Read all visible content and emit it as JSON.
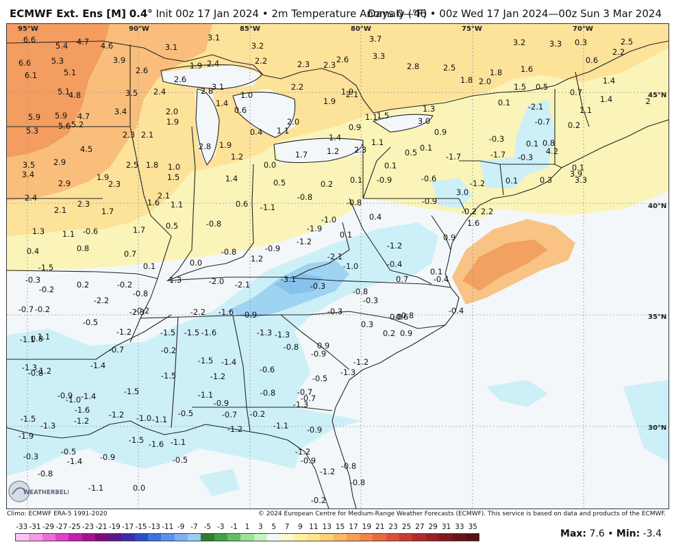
{
  "header": {
    "model": "ECMWF Ext. Ens [M]",
    "resolution": "0.4°",
    "init": "Init 00z 17 Jan 2024",
    "separator": "•",
    "variable": "2m Temperature Anomaly (°F)",
    "range": "Days 0—46",
    "period": "00z Wed 17 Jan 2024—00z Sun 3 Mar 2024"
  },
  "lon_labels": [
    "95°W",
    "90°W",
    "85°W",
    "80°W",
    "75°W",
    "70°W"
  ],
  "lat_labels": [
    "45°N",
    "40°N",
    "35°N",
    "30°N"
  ],
  "anomaly_values": [
    "6.6",
    "5.4",
    "4.7",
    "4.6",
    "3.1",
    "3.2",
    "3.7",
    "3.2",
    "3.3",
    "0.3",
    "2.5",
    "2.2",
    "6.6",
    "5.3",
    "3.9",
    "3.1",
    "1.9",
    "2.4",
    "2.2",
    "2.3",
    "2.6",
    "3.3",
    "2.8",
    "2.5",
    "1.8",
    "1.6",
    "0.6",
    "6.1",
    "5.1",
    "2.6",
    "2.6",
    "2.8",
    "2.3",
    "1.9",
    "1.8",
    "2.0",
    "1.5",
    "0.5",
    "1.4",
    "5.1",
    "4.8",
    "3.5",
    "2.4",
    "3.1",
    "1.0",
    "2.2",
    "2.1",
    "0.7",
    "1.4",
    "2",
    "1.4",
    "0.6",
    "1.9",
    "1.1",
    "1.5",
    "1.3",
    "0.1",
    "-2.1",
    "1.1",
    "5.9",
    "5.9",
    "4.7",
    "3.4",
    "2.0",
    "1.9",
    "2.0",
    "1.1",
    "0.9",
    "3.0",
    "0.9",
    "-0.7",
    "0.2",
    "5.3",
    "5.6",
    "5.2",
    "2.3",
    "2.1",
    "0.4",
    "1.4",
    "1.1",
    "-0.3",
    "0.1",
    "0.8",
    "4.5",
    "2.8",
    "1.9",
    "1.2",
    "1.2",
    "2.3",
    "1.7",
    "0.5",
    "0.1",
    "-1.7",
    "-1.7",
    "-0.3",
    "4.2",
    "2.9",
    "2.5",
    "1.8",
    "1.0",
    "0.0",
    "0.1",
    "0.1",
    "3.9",
    "3.5",
    "3.4",
    "1.9",
    "1.5",
    "1.4",
    "0.5",
    "0.2",
    "0.1",
    "-0.9",
    "-0.6",
    "-1.2",
    "0.1",
    "0.3",
    "3.3",
    "2.9",
    "2.3",
    "1.6",
    "0.6",
    "-0.8",
    "-0.8",
    "-0.9",
    "3.0",
    "2.4",
    "2.3",
    "2.1",
    "1.1",
    "-1.1",
    "-0.2",
    "2.2",
    "2.1",
    "1.7",
    "1.7",
    "0.5",
    "-0.8",
    "-1.0",
    "0.4",
    "1.6",
    "1.3",
    "1.1",
    "-0.6",
    "-1.9",
    "0.1",
    "0.9",
    "0.8",
    "0.7",
    "0.1",
    "0.0",
    "-0.8",
    "-0.9",
    "-1.2",
    "-1.2",
    "1.2",
    "0.4",
    "-1.5",
    "-2.1",
    "-1.0",
    "-0.4",
    "0.1",
    "-0.3",
    "0.2",
    "-0.2",
    "-1.3",
    "-2.0",
    "-2.1",
    "-3.1",
    "-0.3",
    "0.7",
    "-0.4",
    "-0.2",
    "-0.8",
    "-0.8",
    "-0.3",
    "-0.6",
    "-0.7",
    "-0.2",
    "-2.2",
    "-1.6",
    "-2.2",
    "-2.3",
    "-0.9",
    "-0.3",
    "0.0",
    "-0.8",
    "-0.4",
    "-0.5",
    "-0.2",
    "0.3",
    "0.2",
    "0.9",
    "0.8",
    "1.1",
    "-1.2",
    "-1.5",
    "-1.5",
    "-1.6",
    "-1.3",
    "-1.3",
    "-0.8",
    "0.9",
    "-1.1",
    "-0.7",
    "-0.2",
    "-0.9",
    "-1.2",
    "-1.3",
    "-0.8",
    "-1.4",
    "-1.5",
    "-1.5",
    "-1.4",
    "-1.2",
    "-0.6",
    "-0.5",
    "-1.3",
    "-1.2",
    "-0.9",
    "-1.4",
    "-1.5",
    "-1.1",
    "-0.9",
    "-0.8",
    "-0.7",
    "-0.7",
    "-1.3",
    "-1.0",
    "-1.6",
    "-1.5",
    "-1.3",
    "-1.2",
    "-1.2",
    "-1.0",
    "-1.1",
    "-0.5",
    "-0.7",
    "-1.2",
    "-0.2",
    "-1.1",
    "-0.9",
    "-1.9",
    "-1.5",
    "-1.6",
    "-1.1",
    "-0.5",
    "-1.4",
    "-0.9",
    "-0.5",
    "-1.2",
    "-0.9",
    "-1.2",
    "-0.8",
    "-0.3",
    "-0.8",
    "-0.8",
    "-1.1",
    "0.0",
    "-0.2"
  ],
  "climo_note": "Climo: ECMWF ERA-5 1991-2020",
  "copyright": "© 2024 European Centre for Medium-Range Weather Forecasts (ECMWF). This service is based on data and products of the ECMWF.",
  "scale_labels": [
    "-33",
    "-31",
    "-29",
    "-27",
    "-25",
    "-23",
    "-21",
    "-19",
    "-17",
    "-15",
    "-13",
    "-11",
    "-9",
    "-7",
    "-5",
    "-3",
    "-1",
    "1",
    "3",
    "5",
    "7",
    "9",
    "11",
    "13",
    "15",
    "17",
    "19",
    "21",
    "23",
    "25",
    "27",
    "29",
    "31",
    "33",
    "35"
  ],
  "scale_colors": [
    "#f7c6f0",
    "#f29ae6",
    "#e96fd8",
    "#db44c5",
    "#c31fae",
    "#a5108f",
    "#7d0b7a",
    "#5a1a8a",
    "#3d2ca8",
    "#2c4ec4",
    "#3f72d8",
    "#5c93e6",
    "#7db2ef",
    "#9acdf4",
    "#2e7d32",
    "#43a047",
    "#66bb6a",
    "#9be29a",
    "#c8f2c2",
    "#f4f7f9",
    "#fbf7d0",
    "#fdf0a6",
    "#fde58c",
    "#fcd077",
    "#f9b864",
    "#f59f55",
    "#ef854a",
    "#e46c42",
    "#d6533a",
    "#c53d33",
    "#b02b2c",
    "#972125",
    "#7e1a20",
    "#691519",
    "#561114"
  ],
  "stats": {
    "max_label": "Max:",
    "max": "7.6",
    "min_label": "Min:",
    "min": "-3.4"
  },
  "logo_text": "WEATHERBELL"
}
